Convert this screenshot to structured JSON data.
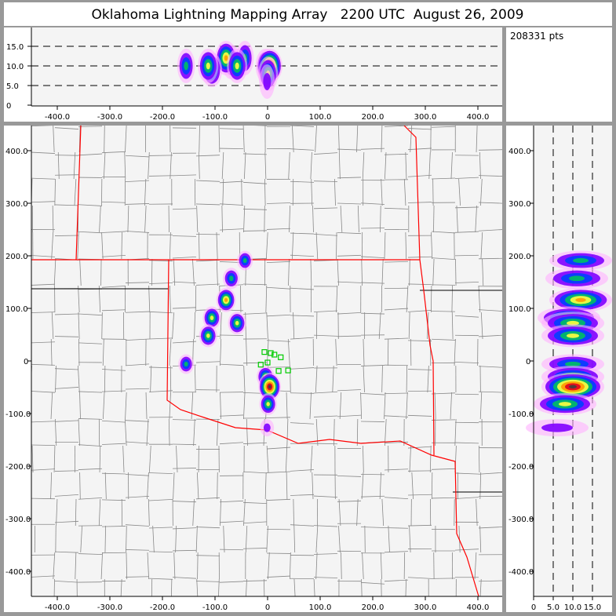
{
  "title": "Oklahoma Lightning Mapping Array   2200 UTC  August 26, 2009",
  "info": {
    "point_count": "208331 pts"
  },
  "colors": {
    "background": "#999999",
    "plot_bg": "#f4f4f4",
    "state_border": "#ff0000",
    "county_border": "#888888",
    "station": "#00cc00",
    "density_scale": [
      "#ffb0ff",
      "#8000ff",
      "#0040ff",
      "#00c060",
      "#ffff40",
      "#ff9900",
      "#e00020",
      "#404040"
    ]
  },
  "chart_data": [
    {
      "panel": "altitude-vs-east-west",
      "type": "scatter",
      "xlim": [
        -450,
        450
      ],
      "ylim": [
        0,
        20
      ],
      "xticks": [
        "-400.0",
        "-300.0",
        "-200.0",
        "-100.0",
        "0",
        "100.0",
        "200.0",
        "300.0",
        "400.0"
      ],
      "yticks": [
        "0",
        "5.0",
        "10.0",
        "15.0"
      ],
      "grid": "dashed horizontal at 5, 10, 15"
    },
    {
      "panel": "plan-view",
      "type": "heatmap",
      "xlim": [
        -450,
        450
      ],
      "ylim": [
        -450,
        450
      ],
      "xticks": [
        "-400.0",
        "-300.0",
        "-200.0",
        "-100.0",
        "0",
        "100.0",
        "200.0",
        "300.0",
        "400.0"
      ],
      "yticks": [
        "-400.0",
        "-300.0",
        "-200.0",
        "-100.0",
        "0",
        "100.0",
        "200.0",
        "300.0",
        "400.0"
      ]
    },
    {
      "panel": "north-south-vs-altitude",
      "type": "scatter",
      "xlim": [
        0,
        20
      ],
      "ylim": [
        -450,
        450
      ],
      "xticks": [
        "0",
        "5.0",
        "10.0",
        "15.0"
      ],
      "yticks": [
        "-400.0",
        "-300.0",
        "-200.0",
        "-100.0",
        "0",
        "100.0",
        "200.0",
        "300.0",
        "400.0"
      ],
      "grid": "dashed vertical at 5, 10, 15"
    }
  ],
  "clusters": [
    {
      "x": -43,
      "y": 191,
      "z": 12,
      "intensity": 0.45
    },
    {
      "x": -69,
      "y": 157,
      "z": 11,
      "intensity": 0.55
    },
    {
      "x": -79,
      "y": 116,
      "z": 12,
      "intensity": 0.75
    },
    {
      "x": -106,
      "y": 82,
      "z": 9,
      "intensity": 0.65
    },
    {
      "x": -58,
      "y": 72,
      "z": 10,
      "intensity": 0.65
    },
    {
      "x": -113,
      "y": 48,
      "z": 10,
      "intensity": 0.65
    },
    {
      "x": -155,
      "y": -6,
      "z": 10,
      "intensity": 0.45
    },
    {
      "x": -4,
      "y": -30,
      "z": 10,
      "intensity": 0.6
    },
    {
      "x": 4,
      "y": -49,
      "z": 10,
      "intensity": 1.0
    },
    {
      "x": 1,
      "y": -82,
      "z": 8,
      "intensity": 0.6
    },
    {
      "x": -1,
      "y": -127,
      "z": 6,
      "intensity": 0.3
    }
  ],
  "stations": [
    {
      "x": -6,
      "y": 17
    },
    {
      "x": 13,
      "y": 12
    },
    {
      "x": 25,
      "y": 7
    },
    {
      "x": -13,
      "y": -7
    },
    {
      "x": 0,
      "y": -3
    },
    {
      "x": 21,
      "y": -19
    },
    {
      "x": 39,
      "y": -18
    },
    {
      "x": 6,
      "y": 15
    }
  ]
}
